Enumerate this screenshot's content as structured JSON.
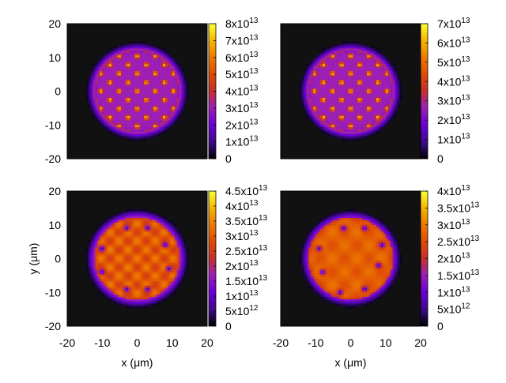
{
  "chart_data": [
    {
      "type": "heatmap",
      "panel": "top-left",
      "description_label": "",
      "xlabel": "",
      "ylabel": "",
      "xlim": [
        -20,
        20
      ],
      "ylim": [
        -20,
        20
      ],
      "x_ticks": [],
      "y_ticks": [
        "20",
        "10",
        "0",
        "-10",
        "-20"
      ],
      "y_tick_values": [
        20,
        10,
        0,
        -10,
        -20
      ],
      "colorbar": {
        "range": [
          0,
          80000000000000.0
        ],
        "ticks": [
          {
            "value": 80000000000000.0,
            "label": "8x10",
            "exp": "13"
          },
          {
            "value": 70000000000000.0,
            "label": "7x10",
            "exp": "13"
          },
          {
            "value": 60000000000000.0,
            "label": "6x10",
            "exp": "13"
          },
          {
            "value": 50000000000000.0,
            "label": "5x10",
            "exp": "13"
          },
          {
            "value": 40000000000000.0,
            "label": "4x10",
            "exp": "13"
          },
          {
            "value": 30000000000000.0,
            "label": "3x10",
            "exp": "13"
          },
          {
            "value": 20000000000000.0,
            "label": "2x10",
            "exp": "13"
          },
          {
            "value": 10000000000000.0,
            "label": "1x10",
            "exp": "13"
          },
          {
            "value": 0,
            "label": "0",
            "exp": ""
          }
        ]
      },
      "pattern": {
        "style": "lattice",
        "radius_um": 13,
        "peak": 0.9,
        "background": 0.55,
        "vortices": []
      }
    },
    {
      "type": "heatmap",
      "panel": "top-right",
      "xlabel": "",
      "ylabel": "",
      "xlim": [
        -20,
        20
      ],
      "ylim": [
        -20,
        20
      ],
      "x_ticks": [],
      "y_ticks": [],
      "colorbar": {
        "range": [
          0,
          70000000000000.0
        ],
        "ticks": [
          {
            "value": 70000000000000.0,
            "label": "7x10",
            "exp": "13"
          },
          {
            "value": 60000000000000.0,
            "label": "6x10",
            "exp": "13"
          },
          {
            "value": 50000000000000.0,
            "label": "5x10",
            "exp": "13"
          },
          {
            "value": 40000000000000.0,
            "label": "4x10",
            "exp": "13"
          },
          {
            "value": 30000000000000.0,
            "label": "3x10",
            "exp": "13"
          },
          {
            "value": 20000000000000.0,
            "label": "2x10",
            "exp": "13"
          },
          {
            "value": 10000000000000.0,
            "label": "1x10",
            "exp": "13"
          },
          {
            "value": 0,
            "label": "0",
            "exp": ""
          }
        ]
      },
      "pattern": {
        "style": "lattice",
        "radius_um": 13,
        "peak": 0.85,
        "background": 0.5,
        "vortices": []
      }
    },
    {
      "type": "heatmap",
      "panel": "bottom-left",
      "xlabel": "x (μm)",
      "ylabel": "y (μm)",
      "xlim": [
        -20,
        20
      ],
      "ylim": [
        -20,
        20
      ],
      "x_ticks": [
        "-20",
        "-10",
        "0",
        "10",
        "20"
      ],
      "x_tick_values": [
        -20,
        -10,
        0,
        10,
        20
      ],
      "y_ticks": [
        "20",
        "10",
        "0",
        "-10",
        "-20"
      ],
      "y_tick_values": [
        20,
        10,
        0,
        -10,
        -20
      ],
      "colorbar": {
        "range": [
          0,
          45000000000000.0
        ],
        "ticks": [
          {
            "value": 45000000000000.0,
            "label": "4.5x10",
            "exp": "13"
          },
          {
            "value": 40000000000000.0,
            "label": "4x10",
            "exp": "13"
          },
          {
            "value": 35000000000000.0,
            "label": "3.5x10",
            "exp": "13"
          },
          {
            "value": 30000000000000.0,
            "label": "3x10",
            "exp": "13"
          },
          {
            "value": 25000000000000.0,
            "label": "2.5x10",
            "exp": "13"
          },
          {
            "value": 20000000000000.0,
            "label": "2x10",
            "exp": "13"
          },
          {
            "value": 15000000000000.0,
            "label": "1.5x10",
            "exp": "13"
          },
          {
            "value": 10000000000000.0,
            "label": "1x10",
            "exp": "13"
          },
          {
            "value": 5000000000000.0,
            "label": "5x10",
            "exp": "12"
          },
          {
            "value": 0,
            "label": "0",
            "exp": ""
          }
        ]
      },
      "pattern": {
        "style": "mixed",
        "radius_um": 13.2,
        "peak": 0.82,
        "background": 0.68,
        "vortices": [
          [
            -3,
            9
          ],
          [
            3,
            9
          ],
          [
            -10,
            3
          ],
          [
            8,
            4
          ],
          [
            -10,
            -4
          ],
          [
            9,
            -3
          ],
          [
            -3,
            -9
          ],
          [
            3,
            -9
          ]
        ]
      }
    },
    {
      "type": "heatmap",
      "panel": "bottom-right",
      "xlabel": "x (μm)",
      "ylabel": "",
      "xlim": [
        -20,
        20
      ],
      "ylim": [
        -20,
        20
      ],
      "x_ticks": [
        "-20",
        "-10",
        "0",
        "10",
        "20"
      ],
      "x_tick_values": [
        -20,
        -10,
        0,
        10,
        20
      ],
      "y_ticks": [],
      "colorbar": {
        "range": [
          0,
          40000000000000.0
        ],
        "ticks": [
          {
            "value": 40000000000000.0,
            "label": "4x10",
            "exp": "13"
          },
          {
            "value": 35000000000000.0,
            "label": "3.5x10",
            "exp": "13"
          },
          {
            "value": 30000000000000.0,
            "label": "3x10",
            "exp": "13"
          },
          {
            "value": 25000000000000.0,
            "label": "2.5x10",
            "exp": "13"
          },
          {
            "value": 20000000000000.0,
            "label": "2x10",
            "exp": "13"
          },
          {
            "value": 15000000000000.0,
            "label": "1.5x10",
            "exp": "13"
          },
          {
            "value": 10000000000000.0,
            "label": "1x10",
            "exp": "13"
          },
          {
            "value": 5000000000000.0,
            "label": "5x10",
            "exp": "12"
          },
          {
            "value": 0,
            "label": "0",
            "exp": ""
          }
        ]
      },
      "pattern": {
        "style": "smooth",
        "radius_um": 13,
        "peak": 0.7,
        "background": 0.7,
        "vortices": [
          [
            -2,
            9
          ],
          [
            4,
            9
          ],
          [
            -9,
            3
          ],
          [
            9,
            4
          ],
          [
            -8,
            -4
          ],
          [
            8,
            -2
          ],
          [
            -3,
            -10
          ],
          [
            4,
            -9
          ]
        ]
      }
    }
  ]
}
